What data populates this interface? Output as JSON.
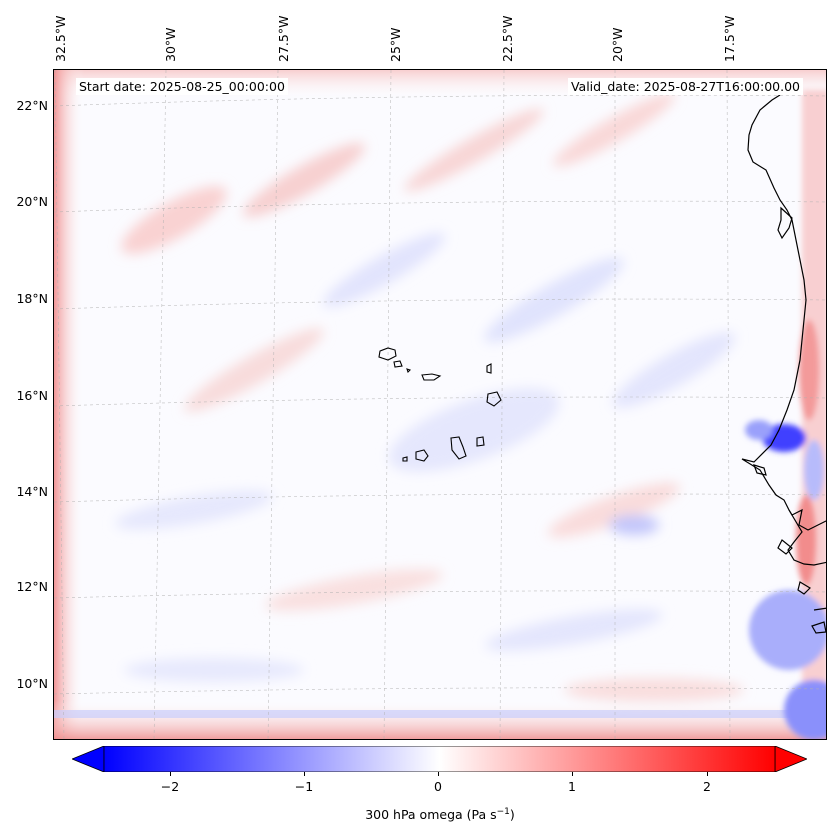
{
  "map": {
    "projection": "lambert-conformal",
    "extent": {
      "lon_min": -33.2,
      "lon_max": -15.3,
      "lat_min": 8.8,
      "lat_max": 22.8
    },
    "longitude_labels": [
      "32.5°W",
      "30°W",
      "27.5°W",
      "25°W",
      "22.5°W",
      "20°W",
      "17.5°W"
    ],
    "latitude_labels": [
      "22°N",
      "20°N",
      "18°N",
      "16°N",
      "14°N",
      "12°N",
      "10°N"
    ],
    "gridlines": true,
    "features": [
      "African coastline (Mauritania, Senegal, Gambia, Guinea-Bissau)",
      "Cape Verde islands"
    ]
  },
  "info": {
    "start_label": "Start date: 2025-08-25_00:00:00",
    "valid_label": "Valid_date: 2025-08-27T16:00:00.00"
  },
  "colorbar": {
    "label": "300 hPa omega (Pa s",
    "label_sup": "−1",
    "label_end": ")",
    "vmin": -2.7,
    "vmax": 2.7,
    "ticks": [
      "−2",
      "−1",
      "0",
      "1",
      "2"
    ],
    "tick_values": [
      -2,
      -1,
      0,
      1,
      2
    ],
    "colormap": "bwr",
    "extend": "both",
    "colors": {
      "low": "#0000ff",
      "mid": "#ffffff",
      "high": "#ff0000"
    }
  },
  "chart_data": {
    "type": "heatmap",
    "variable": "300 hPa omega",
    "units": "Pa s^-1",
    "title": "",
    "field_description": "near-zero values over most of the domain; positive (red) bands along the west and south boundaries; negative (blue) patch near 15°N, 17°W"
  }
}
